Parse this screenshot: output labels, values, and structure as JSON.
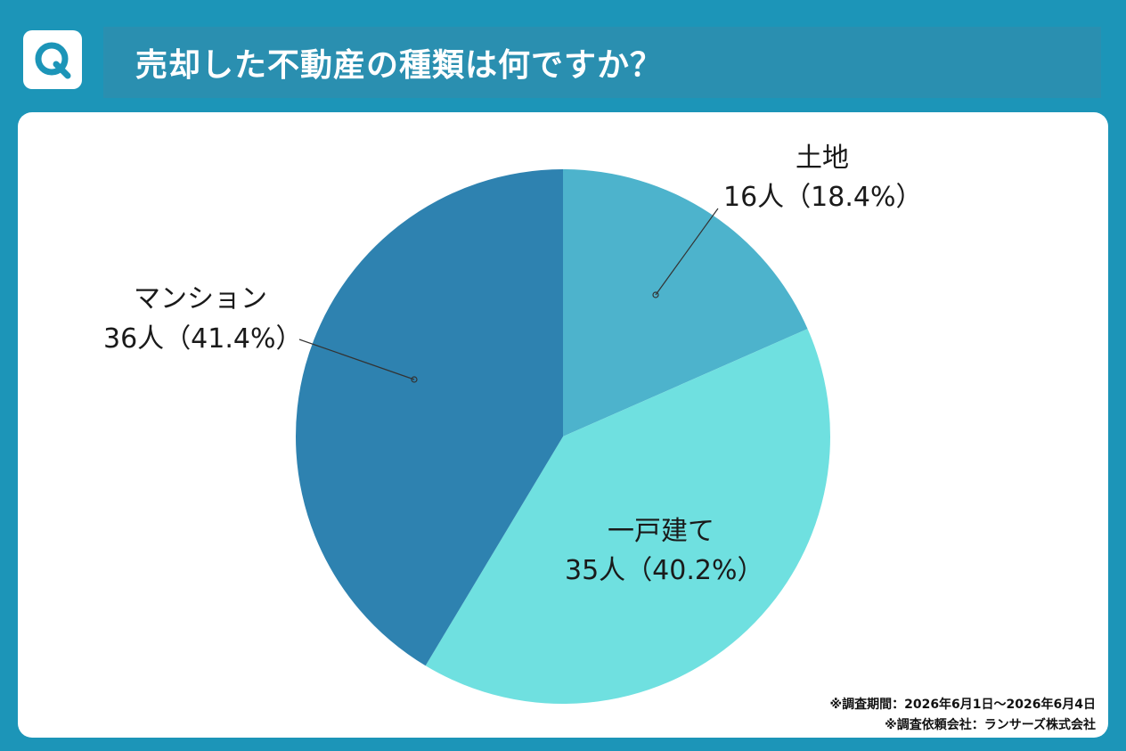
{
  "header": {
    "badge_letter": "Q",
    "title": "売却した不動産の種類は何ですか？"
  },
  "colors": {
    "background": "#1c95b8",
    "title_bar": "#2a8fb0",
    "panel": "#ffffff"
  },
  "chart_data": {
    "type": "pie",
    "title": "売却した不動産の種類は何ですか？",
    "start_angle_deg": 0,
    "direction": "clockwise",
    "slices": [
      {
        "label": "土地",
        "count": 16,
        "count_text": "16人",
        "percent": 18.4,
        "percent_text": "（18.4%）",
        "color": "#4db3cc"
      },
      {
        "label": "一戸建て",
        "count": 35,
        "count_text": "35人",
        "percent": 40.2,
        "percent_text": "（40.2%）",
        "color": "#6fe0e0"
      },
      {
        "label": "マンション",
        "count": 36,
        "count_text": "36人",
        "percent": 41.4,
        "percent_text": "（41.4%）",
        "color": "#2e82b0"
      }
    ]
  },
  "footnotes": {
    "period": "※調査期間：2026年6月1日～2026年6月4日",
    "client": "※調査依頼会社：ランサーズ株式会社"
  }
}
